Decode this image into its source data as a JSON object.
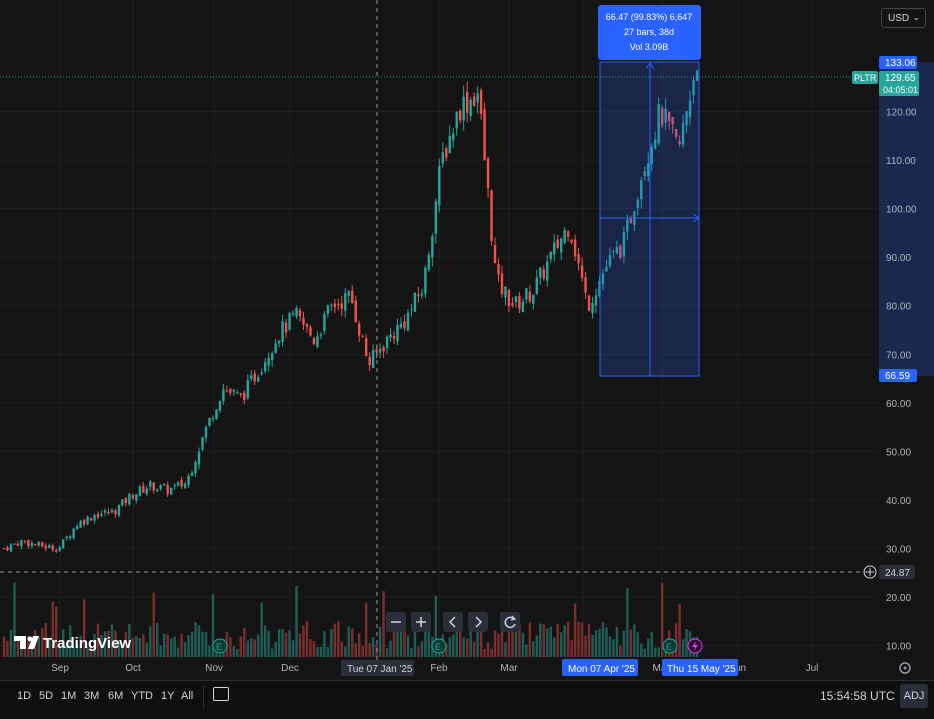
{
  "app": {
    "symbol": "PLTR",
    "currency": "USD",
    "logo_text": "TradingView"
  },
  "price_tag": {
    "last": "129.65",
    "countdown": "04:05:01"
  },
  "measure": {
    "line1": "66.47 (99.83%) 6,647",
    "line2": "27 bars, 38d",
    "line3": "Vol 3.09B",
    "high_label": "133.06",
    "low_label": "66.59",
    "high": 133.06,
    "low": 66.59,
    "start_date_label": "Mon 07 Apr '25",
    "end_date_label": "Thu 15 May '25"
  },
  "crosshair": {
    "date_label": "Tue 07 Jan '25",
    "price_label": "24.87",
    "price": 24.87
  },
  "toolbar": {
    "ranges": [
      "1D",
      "5D",
      "1M",
      "3M",
      "6M",
      "YTD",
      "1Y",
      "All"
    ],
    "time": "15:54:58 UTC",
    "adj": "ADJ"
  },
  "chart_data": {
    "type": "candlestick",
    "y_axis": {
      "ticks": [
        "10.00",
        "20.00",
        "30.00",
        "40.00",
        "50.00",
        "60.00",
        "70.00",
        "80.00",
        "90.00",
        "100.00",
        "110.00",
        "120.00"
      ],
      "range": [
        7,
        143
      ]
    },
    "x_axis": {
      "ticks": [
        "Sep",
        "Oct",
        "Nov",
        "Dec",
        "Feb",
        "Mar",
        "Apr",
        "May",
        "Jun",
        "Jul"
      ]
    },
    "series": [
      {
        "name": "PLTR",
        "close_path": [
          [
            "2024-08-19",
            30.0
          ],
          [
            "2024-08-26",
            31.5
          ],
          [
            "2024-09-03",
            30.5
          ],
          [
            "2024-09-09",
            30.0
          ],
          [
            "2024-09-16",
            35.0
          ],
          [
            "2024-09-23",
            37.0
          ],
          [
            "2024-09-30",
            37.5
          ],
          [
            "2024-10-07",
            41.0
          ],
          [
            "2024-10-14",
            43.0
          ],
          [
            "2024-10-21",
            42.0
          ],
          [
            "2024-10-28",
            43.5
          ],
          [
            "2024-11-04",
            54.0
          ],
          [
            "2024-11-11",
            63.0
          ],
          [
            "2024-11-18",
            61.0
          ],
          [
            "2024-11-25",
            67.0
          ],
          [
            "2024-12-02",
            74.0
          ],
          [
            "2024-12-09",
            78.0
          ],
          [
            "2024-12-16",
            73.0
          ],
          [
            "2024-12-23",
            80.0
          ],
          [
            "2024-12-30",
            82.0
          ],
          [
            "2025-01-06",
            68.0
          ],
          [
            "2025-01-13",
            73.0
          ],
          [
            "2025-01-20",
            77.0
          ],
          [
            "2025-01-27",
            84.0
          ],
          [
            "2025-02-03",
            110.0
          ],
          [
            "2025-02-10",
            121.0
          ],
          [
            "2025-02-18",
            124.0
          ],
          [
            "2025-02-24",
            85.0
          ],
          [
            "2025-03-03",
            80.0
          ],
          [
            "2025-03-10",
            83.0
          ],
          [
            "2025-03-17",
            90.0
          ],
          [
            "2025-03-24",
            97.0
          ],
          [
            "2025-03-31",
            80.0
          ],
          [
            "2025-04-07",
            88.0
          ],
          [
            "2025-04-14",
            93.0
          ],
          [
            "2025-04-21",
            108.0
          ],
          [
            "2025-04-28",
            120.0
          ],
          [
            "2025-05-05",
            112.0
          ],
          [
            "2025-05-12",
            131.0
          ]
        ]
      }
    ],
    "volume_shown": true
  }
}
